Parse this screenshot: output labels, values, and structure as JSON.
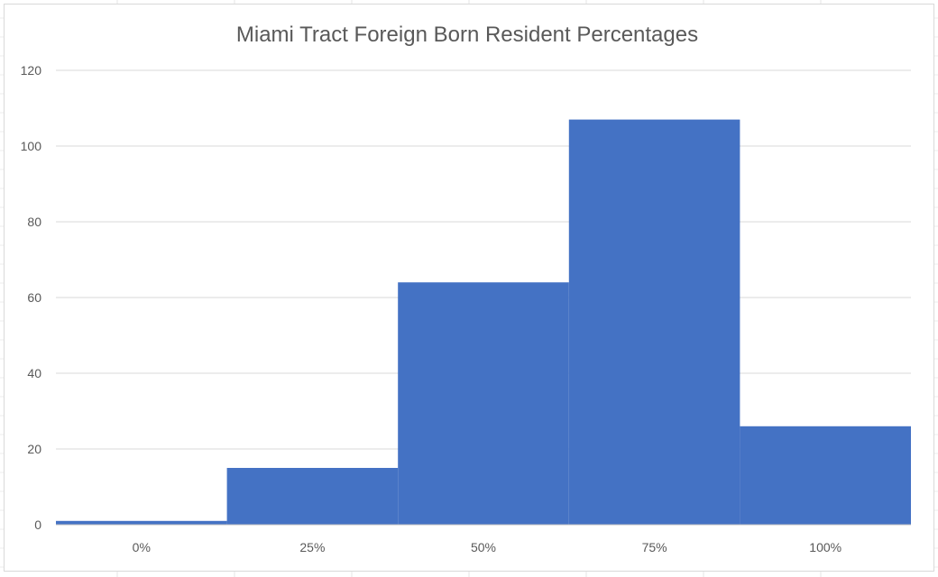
{
  "chart_data": {
    "type": "bar",
    "title": "Miami Tract Foreign Born Resident Percentages",
    "xlabel": "",
    "ylabel": "",
    "categories": [
      "0%",
      "25%",
      "50%",
      "75%",
      "100%"
    ],
    "values": [
      1,
      15,
      64,
      107,
      26
    ],
    "ylim": [
      0,
      120
    ],
    "yticks": [
      0,
      20,
      40,
      60,
      80,
      100,
      120
    ],
    "grid": true,
    "legend": "none",
    "bar_gap": 0,
    "colors": {
      "bar": "#4472c4",
      "gridline": "#d9d9d9",
      "text": "#595959",
      "axis": "#bfbfbf"
    }
  }
}
